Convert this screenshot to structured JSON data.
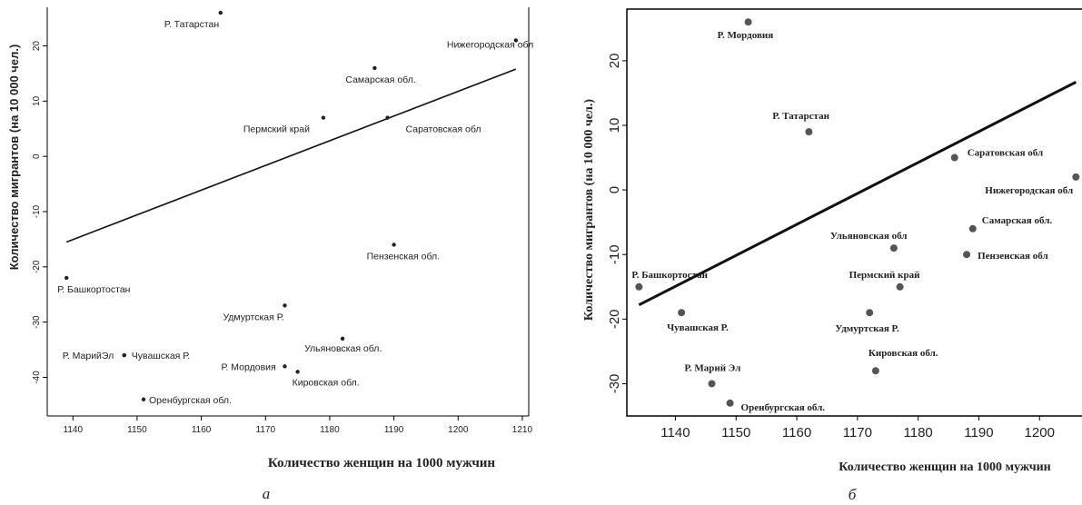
{
  "chart_data": [
    {
      "type": "scatter",
      "caption": "а",
      "xlabel": "Количество женщин на 1000 мужчин",
      "ylabel": "Количество мигрантов (на 10 000 чел.)",
      "xlim": [
        1136,
        1211
      ],
      "ylim": [
        -47,
        27
      ],
      "xticks": [
        1140,
        1150,
        1160,
        1170,
        1180,
        1190,
        1200,
        1210
      ],
      "yticks": [
        -40,
        -30,
        -20,
        -10,
        0,
        10,
        20
      ],
      "points": [
        {
          "label": "Р. Татарстан",
          "x": 1163,
          "y": 26
        },
        {
          "label": "Нижегородская обл",
          "x": 1209,
          "y": 21
        },
        {
          "label": "Самарская обл.",
          "x": 1187,
          "y": 16
        },
        {
          "label": "Пермский край",
          "x": 1179,
          "y": 7
        },
        {
          "label": "Саратовская обл",
          "x": 1189,
          "y": 7
        },
        {
          "label": "Пензенская обл.",
          "x": 1190,
          "y": -16
        },
        {
          "label": "Р. Башкортостан",
          "x": 1139,
          "y": -22
        },
        {
          "label": "Удмуртская Р.",
          "x": 1173,
          "y": -27
        },
        {
          "label": "Ульяновская обл.",
          "x": 1182,
          "y": -33
        },
        {
          "label": "Р. МарийЭл",
          "x": 1148,
          "y": -36
        },
        {
          "label": "Чувашская Р.",
          "x": 1148,
          "y": -36
        },
        {
          "label": "Р. Мордовия",
          "x": 1173,
          "y": -38
        },
        {
          "label": "Кировская обл.",
          "x": 1175,
          "y": -39
        },
        {
          "label": "Оренбургская обл.",
          "x": 1151,
          "y": -44
        }
      ],
      "trendline": {
        "x": [
          1139,
          1209
        ],
        "y": [
          -15.5,
          15.8
        ]
      }
    },
    {
      "type": "scatter",
      "caption": "б",
      "xlabel": "Количество женщин на 1000 мужчин",
      "ylabel": "Количество мигрантов (на 10 000 чел.)",
      "xlim": [
        1132,
        1207
      ],
      "ylim": [
        -35,
        28
      ],
      "xticks": [
        1140,
        1150,
        1160,
        1170,
        1180,
        1190,
        1200
      ],
      "yticks": [
        -30,
        -20,
        -10,
        0,
        10,
        20
      ],
      "points": [
        {
          "label": "Р. Мордовия",
          "x": 1152,
          "y": 26
        },
        {
          "label": "Р. Татарстан",
          "x": 1162,
          "y": 9
        },
        {
          "label": "Саратовская обл",
          "x": 1186,
          "y": 5
        },
        {
          "label": "Нижегородская обл",
          "x": 1206,
          "y": 2
        },
        {
          "label": "Самарская обл.",
          "x": 1189,
          "y": -6
        },
        {
          "label": "Ульяновская обл",
          "x": 1176,
          "y": -9
        },
        {
          "label": "Пензенская обл",
          "x": 1188,
          "y": -10
        },
        {
          "label": "Р. Башкортостан",
          "x": 1134,
          "y": -15
        },
        {
          "label": "Пермский край",
          "x": 1177,
          "y": -15
        },
        {
          "label": "Чувашская Р.",
          "x": 1141,
          "y": -19
        },
        {
          "label": "Удмуртская Р.",
          "x": 1172,
          "y": -19
        },
        {
          "label": "Кировская обл.",
          "x": 1173,
          "y": -28
        },
        {
          "label": "Р. Марий Эл",
          "x": 1146,
          "y": -30
        },
        {
          "label": "Оренбургская обл.",
          "x": 1149,
          "y": -33
        }
      ],
      "trendline": {
        "x": [
          1134,
          1206
        ],
        "y": [
          -17.8,
          16.7
        ]
      }
    }
  ]
}
